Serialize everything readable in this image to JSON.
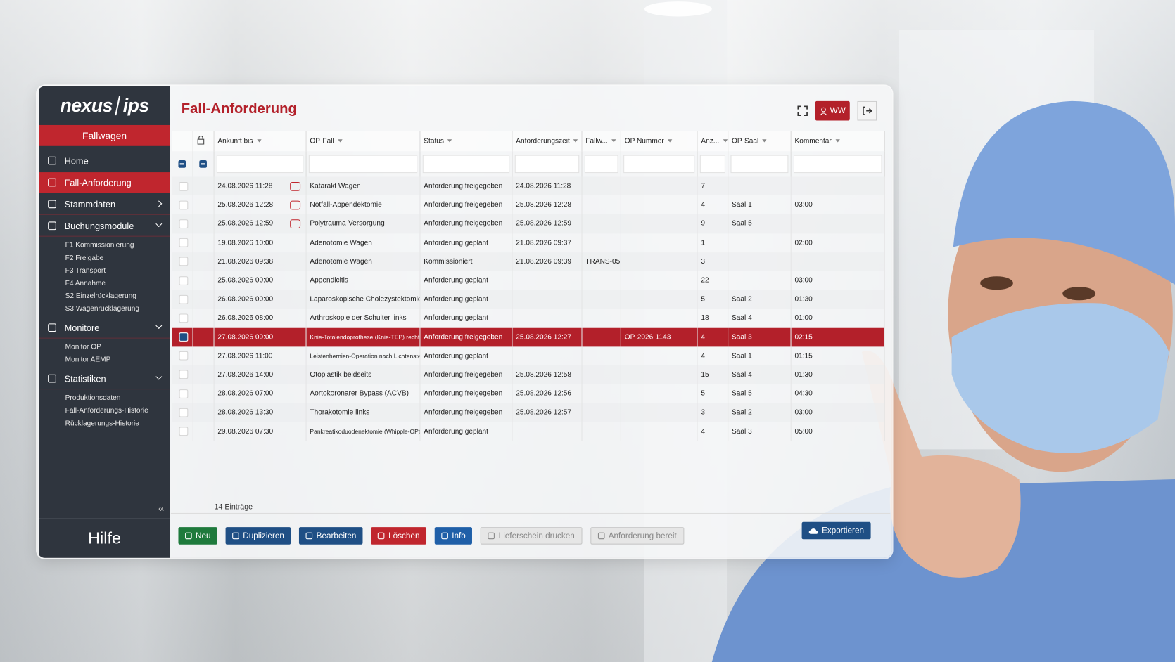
{
  "sidebar": {
    "logo_left": "nexus",
    "logo_right": "ips",
    "module": "Fallwagen",
    "nav": [
      {
        "label": "Home"
      },
      {
        "label": "Fall-Anforderung",
        "active": true
      },
      {
        "label": "Stammdaten"
      },
      {
        "label": "Buchungsmodule",
        "items": [
          "F1 Kommissionierung",
          "F2 Freigabe",
          "F3 Transport",
          "F4 Annahme",
          "S2 Einzelrücklagerung",
          "S3 Wagenrücklagerung"
        ]
      },
      {
        "label": "Monitore",
        "items": [
          "Monitor OP",
          "Monitor AEMP"
        ]
      },
      {
        "label": "Statistiken",
        "items": [
          "Produktionsdaten",
          "Fall-Anforderungs-Historie",
          "Rücklagerungs-Historie"
        ]
      }
    ],
    "collapse": "«",
    "help": "Hilfe"
  },
  "header": {
    "title": "Fall-Anforderung",
    "user": "WW"
  },
  "table": {
    "columns": [
      "Ankunft bis",
      "OP-Fall",
      "Status",
      "Anforderungszeit",
      "Fallw...",
      "OP Nummer",
      "Anz...",
      "OP-Saal",
      "Kommentar"
    ],
    "rows": [
      [
        "24.08.2026 11:28",
        "Katarakt Wagen",
        "Anforderung freigegeben",
        "24.08.2026 11:28",
        null,
        null,
        7,
        null,
        null
      ],
      [
        "25.08.2026 12:28",
        "Notfall-Appendektomie",
        "Anforderung freigegeben",
        "25.08.2026 12:28",
        null,
        null,
        4,
        "Saal 1",
        "03:00"
      ],
      [
        "25.08.2026 12:59",
        "Polytrauma-Versorgung",
        "Anforderung freigegeben",
        "25.08.2026 12:59",
        null,
        null,
        9,
        "Saal 5",
        null
      ],
      [
        "19.08.2026 10:00",
        "Adenotomie Wagen",
        "Anforderung geplant",
        "21.08.2026 09:37",
        null,
        null,
        1,
        null,
        "02:00"
      ],
      [
        "21.08.2026 09:38",
        "Adenotomie Wagen",
        "Kommissioniert",
        "21.08.2026 09:39",
        "TRANS-05",
        null,
        3,
        null,
        null
      ],
      [
        "25.08.2026 00:00",
        "Appendicitis",
        "Anforderung geplant",
        null,
        null,
        null,
        22,
        null,
        "03:00"
      ],
      [
        "26.08.2026 00:00",
        "Laparoskopische Cholezystektomie",
        "Anforderung geplant",
        null,
        null,
        null,
        5,
        "Saal 2",
        "01:30"
      ],
      [
        "26.08.2026 08:00",
        "Arthroskopie der Schulter links",
        "Anforderung geplant",
        null,
        null,
        null,
        18,
        "Saal 4",
        "01:00"
      ],
      [
        "27.08.2026 09:00",
        "Knie-Totalendoprothese (Knie-TEP) rechts",
        "Anforderung freigegeben",
        "25.08.2026 12:27",
        null,
        "OP-2026-1143",
        4,
        "Saal 3",
        "02:15"
      ],
      [
        "27.08.2026 11:00",
        "Leistenhernien-Operation nach Lichtenstein",
        "Anforderung geplant",
        null,
        null,
        null,
        4,
        "Saal 1",
        "01:15"
      ],
      [
        "27.08.2026 14:00",
        "Otoplastik beidseits",
        "Anforderung freigegeben",
        "25.08.2026 12:58",
        null,
        null,
        15,
        "Saal 4",
        "01:30"
      ],
      [
        "28.08.2026 07:00",
        "Aortokoronarer Bypass (ACVB)",
        "Anforderung freigegeben",
        "25.08.2026 12:56",
        null,
        null,
        5,
        "Saal 5",
        "04:30"
      ],
      [
        "28.08.2026 13:30",
        "Thorakotomie links",
        "Anforderung freigegeben",
        "25.08.2026 12:57",
        null,
        null,
        3,
        "Saal 2",
        "03:00"
      ],
      [
        "29.08.2026 07:30",
        "Pankreatikoduodenektomie (Whipple-OP)",
        "Anforderung geplant",
        null,
        null,
        null,
        4,
        "Saal 3",
        "05:00"
      ]
    ],
    "selected_row": 8,
    "urgent_rows": [
      0,
      1,
      2
    ],
    "count": "14 Einträge"
  },
  "toolbar": {
    "buttons": [
      {
        "label": "Neu",
        "color": "#1e7a3c"
      },
      {
        "label": "Duplizieren",
        "color": "#1f4f85"
      },
      {
        "label": "Bearbeiten",
        "color": "#1f4f85"
      },
      {
        "label": "Löschen",
        "color": "#c0262e"
      },
      {
        "label": "Info",
        "color": "#1f5fa8"
      },
      {
        "label": "Lieferschein drucken",
        "disabled": true
      },
      {
        "label": "Anforderung bereit",
        "disabled": true
      }
    ],
    "export": "Exportieren"
  }
}
